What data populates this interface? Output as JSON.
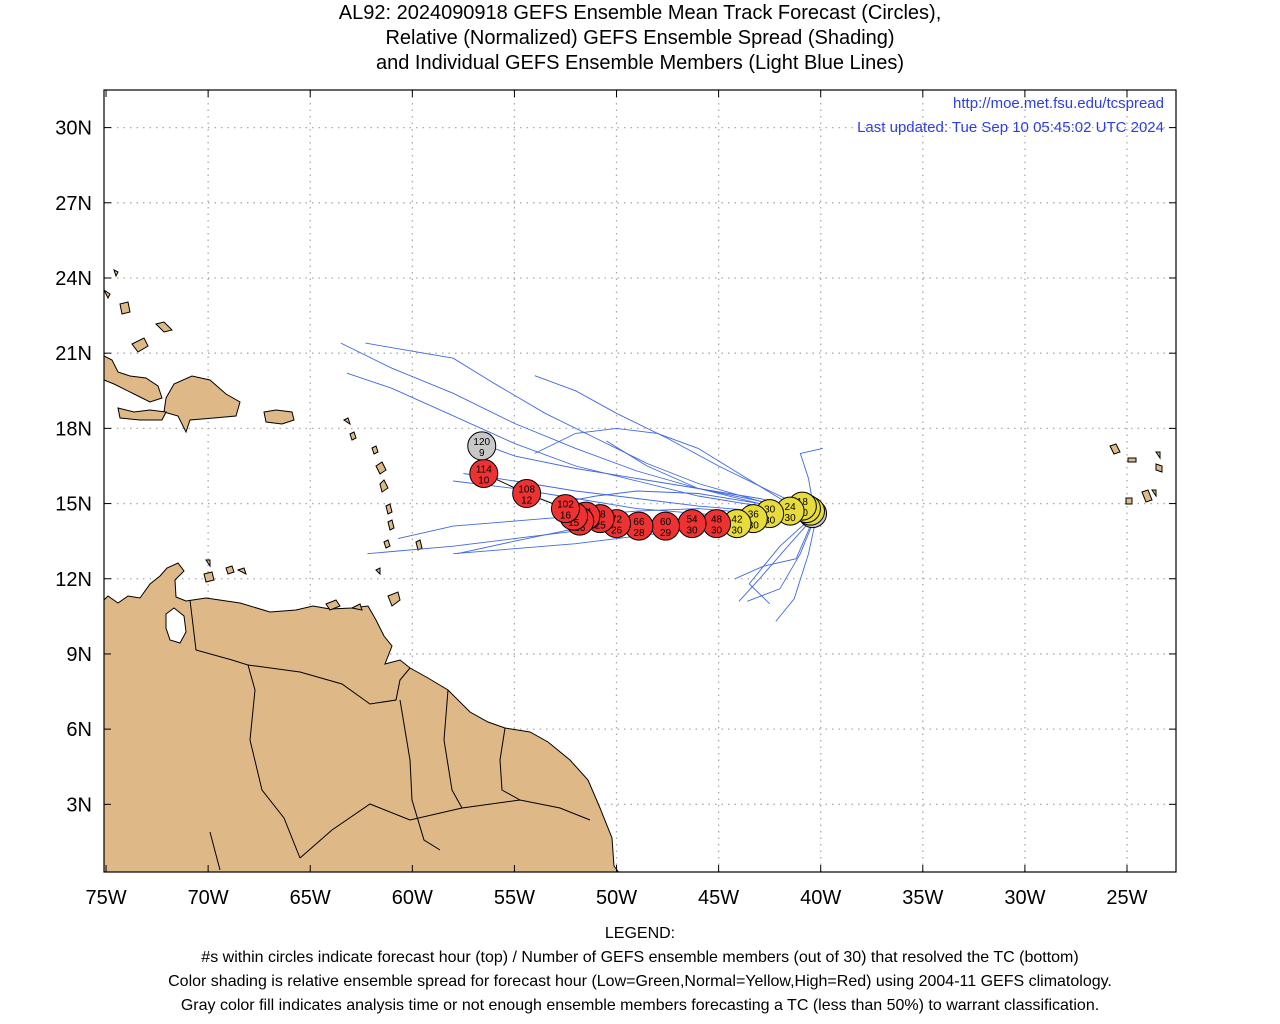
{
  "title": {
    "line1": "AL92: 2024090918 GEFS Ensemble Mean Track Forecast (Circles),",
    "line2": "Relative (Normalized) GEFS Ensemble Spread (Shading)",
    "line3": "and Individual GEFS Ensemble Members (Light Blue Lines)"
  },
  "credit": {
    "url": "http://moe.met.fsu.edu/tcspread",
    "updated": "Last updated: Tue Sep 10 05:45:02 UTC 2024"
  },
  "legend": {
    "heading": "LEGEND:",
    "line1": "#s within circles indicate forecast hour (top) / Number of GEFS ensemble members (out of 30) that resolved the TC (bottom)",
    "line2": "Color shading is relative ensemble spread for forecast hour (Low=Green,Normal=Yellow,High=Red) using 2004-11 GEFS climatology.",
    "line3": "Gray color fill indicates analysis time or not enough ensemble members forecasting a TC (less than 50%) to warrant classification."
  },
  "colors": {
    "land": "#deb887",
    "member_track": "#4169e1",
    "credit_text": "#2d3fe0",
    "spread_high": "#ee3232",
    "spread_normal": "#e8dc3c",
    "insufficient": "#c8c8c8"
  },
  "axes": {
    "lon_ticks": [
      "75W",
      "70W",
      "65W",
      "60W",
      "55W",
      "50W",
      "45W",
      "40W",
      "35W",
      "30W",
      "25W"
    ],
    "lat_ticks": [
      "3N",
      "6N",
      "9N",
      "12N",
      "15N",
      "18N",
      "21N",
      "24N",
      "27N",
      "30N"
    ]
  },
  "mean_track": [
    {
      "hour": "0",
      "members": "",
      "lon": -40.4,
      "lat": 14.6,
      "fill": "insufficient"
    },
    {
      "hour": "6",
      "members": "30",
      "lon": -40.5,
      "lat": 14.7,
      "fill": "spread_normal"
    },
    {
      "hour": "12",
      "members": "30",
      "lon": -40.7,
      "lat": 14.8,
      "fill": "spread_normal"
    },
    {
      "hour": "18",
      "members": "30",
      "lon": -40.9,
      "lat": 14.9,
      "fill": "spread_normal"
    },
    {
      "hour": "24",
      "members": "30",
      "lon": -41.5,
      "lat": 14.7,
      "fill": "spread_normal"
    },
    {
      "hour": "30",
      "members": "30",
      "lon": -42.5,
      "lat": 14.6,
      "fill": "spread_normal"
    },
    {
      "hour": "36",
      "members": "30",
      "lon": -43.3,
      "lat": 14.4,
      "fill": "spread_normal"
    },
    {
      "hour": "42",
      "members": "30",
      "lon": -44.1,
      "lat": 14.2,
      "fill": "spread_normal"
    },
    {
      "hour": "48",
      "members": "30",
      "lon": -45.1,
      "lat": 14.2,
      "fill": "spread_high"
    },
    {
      "hour": "54",
      "members": "30",
      "lon": -46.3,
      "lat": 14.2,
      "fill": "spread_high"
    },
    {
      "hour": "60",
      "members": "29",
      "lon": -47.6,
      "lat": 14.1,
      "fill": "spread_high"
    },
    {
      "hour": "66",
      "members": "28",
      "lon": -48.9,
      "lat": 14.1,
      "fill": "spread_high"
    },
    {
      "hour": "72",
      "members": "26",
      "lon": -50.0,
      "lat": 14.2,
      "fill": "spread_high"
    },
    {
      "hour": "78",
      "members": "25",
      "lon": -50.8,
      "lat": 14.4,
      "fill": "spread_high"
    },
    {
      "hour": "84",
      "members": "18",
      "lon": -51.5,
      "lat": 14.5,
      "fill": "spread_high"
    },
    {
      "hour": "90",
      "members": "16",
      "lon": -51.8,
      "lat": 14.3,
      "fill": "spread_high"
    },
    {
      "hour": "96",
      "members": "15",
      "lon": -52.1,
      "lat": 14.5,
      "fill": "spread_high"
    },
    {
      "hour": "102",
      "members": "16",
      "lon": -52.5,
      "lat": 14.8,
      "fill": "spread_high"
    },
    {
      "hour": "108",
      "members": "12",
      "lon": -54.4,
      "lat": 15.4,
      "fill": "spread_high"
    },
    {
      "hour": "114",
      "members": "10",
      "lon": -56.5,
      "lat": 16.2,
      "fill": "spread_high"
    },
    {
      "hour": "120",
      "members": "9",
      "lon": -56.6,
      "lat": 17.3,
      "fill": "insufficient"
    }
  ],
  "member_tracks": [
    [
      [
        -40.1,
        14.6
      ],
      [
        -43,
        15.0
      ],
      [
        -46,
        15.6
      ],
      [
        -49,
        16.3
      ],
      [
        -52,
        17.2
      ],
      [
        -55,
        18.2
      ],
      [
        -58,
        19.4
      ],
      [
        -61,
        20.4
      ],
      [
        -63.5,
        21.4
      ]
    ],
    [
      [
        -40.2,
        14.6
      ],
      [
        -43,
        15.1
      ],
      [
        -46,
        15.8
      ],
      [
        -48.5,
        16.6
      ],
      [
        -51,
        17.6
      ],
      [
        -53.5,
        18.6
      ],
      [
        -56,
        19.8
      ],
      [
        -58,
        20.8
      ],
      [
        -62.3,
        21.4
      ]
    ],
    [
      [
        -40.3,
        14.5
      ],
      [
        -43,
        14.9
      ],
      [
        -46,
        15.3
      ],
      [
        -49,
        15.9
      ],
      [
        -52,
        16.5
      ],
      [
        -55,
        17.4
      ],
      [
        -58,
        18.5
      ],
      [
        -61,
        19.6
      ],
      [
        -63.2,
        20.2
      ]
    ],
    [
      [
        -40.2,
        14.7
      ],
      [
        -43,
        15.2
      ],
      [
        -46,
        15.6
      ],
      [
        -49,
        16.0
      ],
      [
        -52,
        16.4
      ],
      [
        -55,
        16.9
      ],
      [
        -57,
        17.5
      ]
    ],
    [
      [
        -40.3,
        14.6
      ],
      [
        -42,
        15.2
      ],
      [
        -44,
        16.2
      ],
      [
        -46,
        17.2
      ],
      [
        -48,
        17.8
      ],
      [
        -50,
        18.0
      ],
      [
        -52,
        17.8
      ],
      [
        -54,
        17.0
      ]
    ],
    [
      [
        -40.2,
        14.6
      ],
      [
        -42.5,
        15.5
      ],
      [
        -45,
        16.5
      ],
      [
        -47.5,
        17.6
      ],
      [
        -50,
        18.6
      ],
      [
        -52,
        19.5
      ],
      [
        -54,
        20.1
      ]
    ],
    [
      [
        -40.4,
        14.5
      ],
      [
        -43,
        14.6
      ],
      [
        -46,
        14.8
      ],
      [
        -49,
        14.7
      ],
      [
        -52,
        14.5
      ],
      [
        -55,
        14.3
      ],
      [
        -58,
        14.1
      ],
      [
        -60.7,
        13.6
      ]
    ],
    [
      [
        -40.3,
        14.5
      ],
      [
        -43,
        14.6
      ],
      [
        -46,
        14.4
      ],
      [
        -49,
        14.2
      ],
      [
        -52,
        13.9
      ],
      [
        -55,
        13.6
      ],
      [
        -58,
        13.3
      ],
      [
        -62.2,
        13.0
      ]
    ],
    [
      [
        -40.4,
        14.4
      ],
      [
        -43,
        14.3
      ],
      [
        -46,
        14.0
      ],
      [
        -49,
        13.7
      ],
      [
        -52,
        13.4
      ],
      [
        -55,
        13.2
      ],
      [
        -58,
        13.0
      ]
    ],
    [
      [
        -40.4,
        14.5
      ],
      [
        -43,
        14.4
      ],
      [
        -46,
        14.6
      ],
      [
        -49,
        14.8
      ],
      [
        -52,
        15.2
      ],
      [
        -55,
        15.6
      ],
      [
        -58,
        15.9
      ]
    ],
    [
      [
        -40.3,
        14.6
      ],
      [
        -40.6,
        16.0
      ],
      [
        -41.0,
        17.0
      ],
      [
        -39.9,
        17.2
      ]
    ],
    [
      [
        -40.2,
        14.5
      ],
      [
        -40.6,
        13.0
      ],
      [
        -41.3,
        11.2
      ],
      [
        -42.2,
        10.3
      ]
    ],
    [
      [
        -40.3,
        14.4
      ],
      [
        -41.0,
        13.0
      ],
      [
        -42.0,
        11.6
      ],
      [
        -43.6,
        11.1
      ]
    ],
    [
      [
        -40.4,
        14.4
      ],
      [
        -41.5,
        13.4
      ],
      [
        -43.0,
        12.0
      ],
      [
        -44.0,
        11.1
      ]
    ],
    [
      [
        -40.5,
        14.4
      ],
      [
        -42.0,
        13.3
      ],
      [
        -43.5,
        11.8
      ],
      [
        -42.5,
        11.0
      ]
    ],
    [
      [
        -40.3,
        14.5
      ],
      [
        -41.2,
        12.8
      ],
      [
        -42.8,
        12.5
      ],
      [
        -44.2,
        12.0
      ]
    ],
    [
      [
        -40.4,
        14.5
      ],
      [
        -43,
        14.5
      ],
      [
        -46,
        14.3
      ],
      [
        -49,
        14.1
      ],
      [
        -52,
        14.0
      ],
      [
        -55,
        13.5
      ],
      [
        -57.8,
        13.0
      ]
    ],
    [
      [
        -40.2,
        14.6
      ],
      [
        -43,
        15.0
      ],
      [
        -46,
        15.4
      ],
      [
        -49,
        15.5
      ],
      [
        -51,
        15.3
      ],
      [
        -53,
        15.0
      ]
    ],
    [
      [
        -40.3,
        14.6
      ],
      [
        -43,
        15.1
      ],
      [
        -46,
        15.6
      ],
      [
        -48.5,
        16.5
      ],
      [
        -50.5,
        17.5
      ]
    ],
    [
      [
        -40.3,
        14.5
      ],
      [
        -43,
        14.7
      ],
      [
        -46,
        14.9
      ],
      [
        -49,
        15.2
      ],
      [
        -52,
        15.5
      ],
      [
        -55,
        15.9
      ],
      [
        -57.5,
        16.2
      ]
    ]
  ]
}
